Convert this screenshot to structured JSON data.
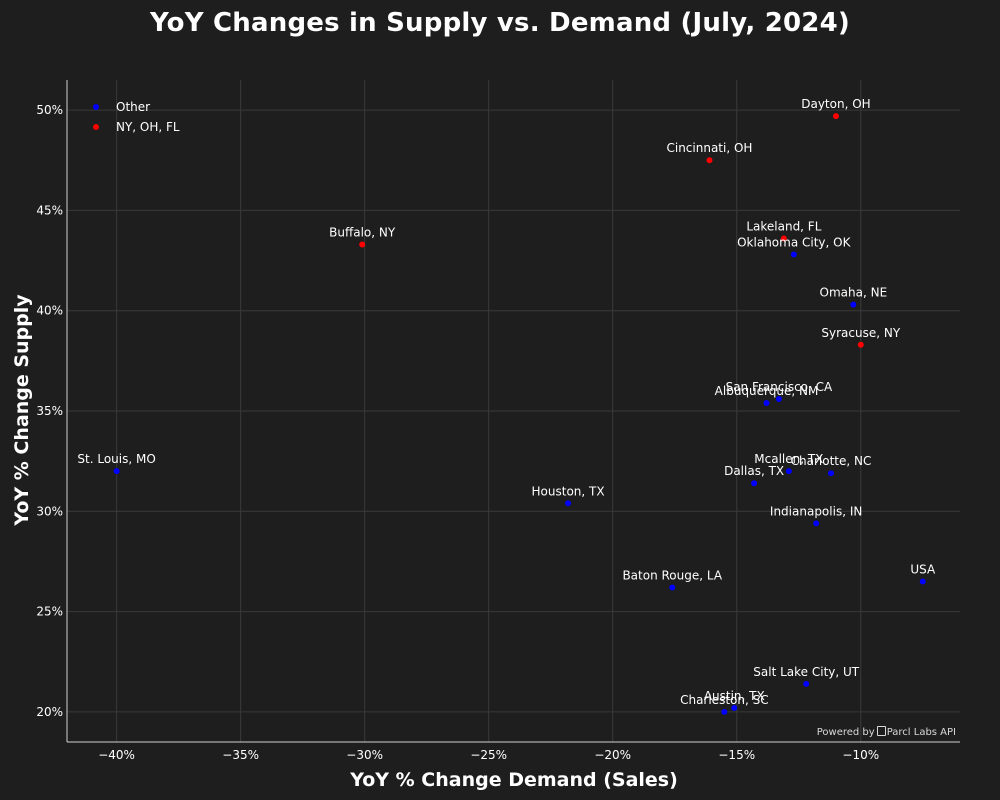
{
  "chart_data": {
    "type": "scatter",
    "title": "YoY Changes in Supply vs. Demand (July, 2024)",
    "xlabel": "YoY % Change Demand (Sales)",
    "ylabel": "YoY % Change Supply",
    "xlim": [
      -42,
      -6
    ],
    "ylim": [
      18.5,
      51.5
    ],
    "x_ticks": [
      -40,
      -35,
      -30,
      -25,
      -20,
      -15,
      -10
    ],
    "x_tick_labels": [
      "−40%",
      "−35%",
      "−30%",
      "−25%",
      "−20%",
      "−15%",
      "−10%"
    ],
    "y_ticks": [
      20,
      25,
      30,
      35,
      40,
      45,
      50
    ],
    "y_tick_labels": [
      "20%",
      "25%",
      "30%",
      "35%",
      "40%",
      "45%",
      "50%"
    ],
    "grid": true,
    "legend_position": "top-left",
    "series": [
      {
        "name": "Other",
        "color": "#0000ff",
        "points": [
          {
            "label": "St. Louis, MO",
            "x": -40.0,
            "y": 32.0
          },
          {
            "label": "Houston, TX",
            "x": -21.8,
            "y": 30.4
          },
          {
            "label": "Baton Rouge, LA",
            "x": -17.6,
            "y": 26.2
          },
          {
            "label": "Dallas, TX",
            "x": -14.3,
            "y": 31.4
          },
          {
            "label": "Mcallen, TX",
            "x": -12.9,
            "y": 32.0
          },
          {
            "label": "Charlotte, NC",
            "x": -11.2,
            "y": 31.9
          },
          {
            "label": "Indianapolis, IN",
            "x": -11.8,
            "y": 29.4
          },
          {
            "label": "San Francisco, CA",
            "x": -13.3,
            "y": 35.6
          },
          {
            "label": "Albuquerque, NM",
            "x": -13.8,
            "y": 35.4
          },
          {
            "label": "Oklahoma City, OK",
            "x": -12.7,
            "y": 42.8
          },
          {
            "label": "Omaha, NE",
            "x": -10.3,
            "y": 40.3
          },
          {
            "label": "USA",
            "x": -7.5,
            "y": 26.5
          },
          {
            "label": "Salt Lake City, UT",
            "x": -12.2,
            "y": 21.4
          },
          {
            "label": "Austin, TX",
            "x": -15.1,
            "y": 20.2
          },
          {
            "label": "Charleston, SC",
            "x": -15.5,
            "y": 20.0
          }
        ]
      },
      {
        "name": "NY, OH, FL",
        "color": "#ff0000",
        "points": [
          {
            "label": "Dayton, OH",
            "x": -11.0,
            "y": 49.7
          },
          {
            "label": "Cincinnati, OH",
            "x": -16.1,
            "y": 47.5
          },
          {
            "label": "Buffalo, NY",
            "x": -30.1,
            "y": 43.3
          },
          {
            "label": "Lakeland, FL",
            "x": -13.1,
            "y": 43.6
          },
          {
            "label": "Syracuse, NY",
            "x": -10.0,
            "y": 38.3
          }
        ]
      }
    ]
  },
  "watermark": {
    "prefix": "Powered by",
    "brand": "Parcl Labs API"
  },
  "colors": {
    "background": "#1e1e1e",
    "grid": "#3a3a3a",
    "axis_line": "#d0d0d0"
  }
}
